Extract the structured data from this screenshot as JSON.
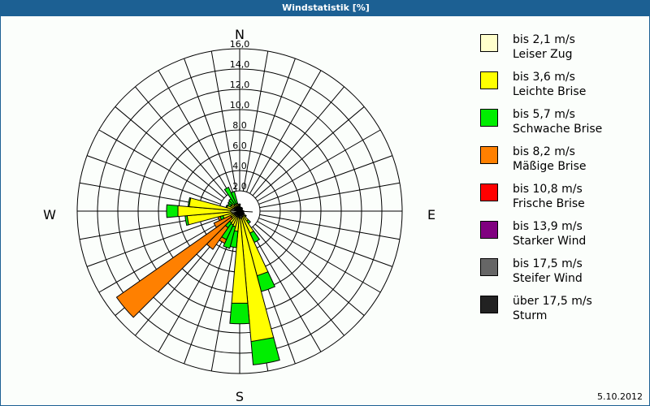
{
  "window": {
    "title": "Windstatistik [%]",
    "date": "5.10.2012"
  },
  "compass": {
    "N": "N",
    "E": "E",
    "S": "S",
    "W": "W"
  },
  "legend": [
    {
      "range": "bis 2,1 m/s",
      "name": "Leiser Zug",
      "color": "#ffffcc"
    },
    {
      "range": "bis 3,6 m/s",
      "name": "Leichte Brise",
      "color": "#ffff00"
    },
    {
      "range": "bis 5,7 m/s",
      "name": "Schwache Brise",
      "color": "#00ee00"
    },
    {
      "range": "bis 8,2 m/s",
      "name": "Mäßige Brise",
      "color": "#ff8000"
    },
    {
      "range": "bis 10,8 m/s",
      "name": "Frische Brise",
      "color": "#ff0000"
    },
    {
      "range": "bis 13,9 m/s",
      "name": "Starker Wind",
      "color": "#800080"
    },
    {
      "range": "bis 17,5 m/s",
      "name": "Steifer Wind",
      "color": "#666666"
    },
    {
      "range": "über 17,5 m/s",
      "name": "Sturm",
      "color": "#222222"
    }
  ],
  "chart_data": {
    "type": "polar_stacked_bar",
    "title": "Windstatistik [%]",
    "radial_ticks": [
      "2,0",
      "4,0",
      "6,0",
      "8,0",
      "10,0",
      "12,0",
      "14,0",
      "16,0"
    ],
    "rmax": 16,
    "sector_width_deg": 10,
    "directions_deg": [
      0,
      10,
      20,
      30,
      40,
      50,
      60,
      70,
      80,
      90,
      100,
      110,
      120,
      130,
      140,
      150,
      160,
      170,
      180,
      190,
      200,
      210,
      220,
      230,
      240,
      250,
      260,
      270,
      280,
      290,
      300,
      310,
      320,
      330,
      340,
      350
    ],
    "series": [
      {
        "name": "bis 2,1 m/s",
        "values": [
          0.4,
          0.3,
          0.3,
          0.3,
          0.3,
          0.3,
          0.3,
          0.3,
          0.3,
          0.4,
          0.4,
          0.4,
          0.4,
          0.4,
          0.5,
          0.6,
          0.6,
          0.7,
          0.7,
          0.6,
          0.6,
          0.6,
          0.6,
          0.6,
          0.6,
          0.7,
          0.8,
          0.9,
          0.8,
          0.7,
          0.6,
          0.6,
          0.5,
          0.5,
          0.5,
          0.4
        ]
      },
      {
        "name": "bis 3,6 m/s",
        "values": [
          0.2,
          0.1,
          0.1,
          0.1,
          0.1,
          0.0,
          0.0,
          0.0,
          0.0,
          0.0,
          0.0,
          0.0,
          0.1,
          0.3,
          0.7,
          1.8,
          6.0,
          12.2,
          8.4,
          1.4,
          1.0,
          0.9,
          0.8,
          0.4,
          0.4,
          1.0,
          4.4,
          5.2,
          4.2,
          0.6,
          0.4,
          0.4,
          0.3,
          0.3,
          0.3,
          0.2
        ]
      },
      {
        "name": "bis 5,7 m/s",
        "values": [
          0.1,
          0.0,
          0.0,
          0.0,
          0.0,
          0.0,
          0.0,
          0.0,
          0.0,
          0.0,
          0.0,
          0.0,
          0.0,
          0.1,
          0.3,
          1.0,
          1.6,
          2.3,
          2.0,
          1.6,
          2.2,
          1.6,
          0.6,
          0.0,
          0.0,
          0.3,
          0.2,
          1.1,
          0.1,
          0.1,
          0.3,
          0.4,
          0.7,
          1.8,
          1.2,
          0.1
        ]
      },
      {
        "name": "bis 8,2 m/s",
        "values": [
          0,
          0,
          0,
          0,
          0,
          0,
          0,
          0,
          0,
          0,
          0,
          0,
          0,
          0,
          0,
          0,
          0,
          0,
          0,
          0,
          0,
          0.4,
          2.6,
          13.8,
          1.8,
          0.2,
          0,
          0,
          0,
          0,
          0,
          0,
          0,
          0,
          0,
          0
        ]
      }
    ]
  }
}
